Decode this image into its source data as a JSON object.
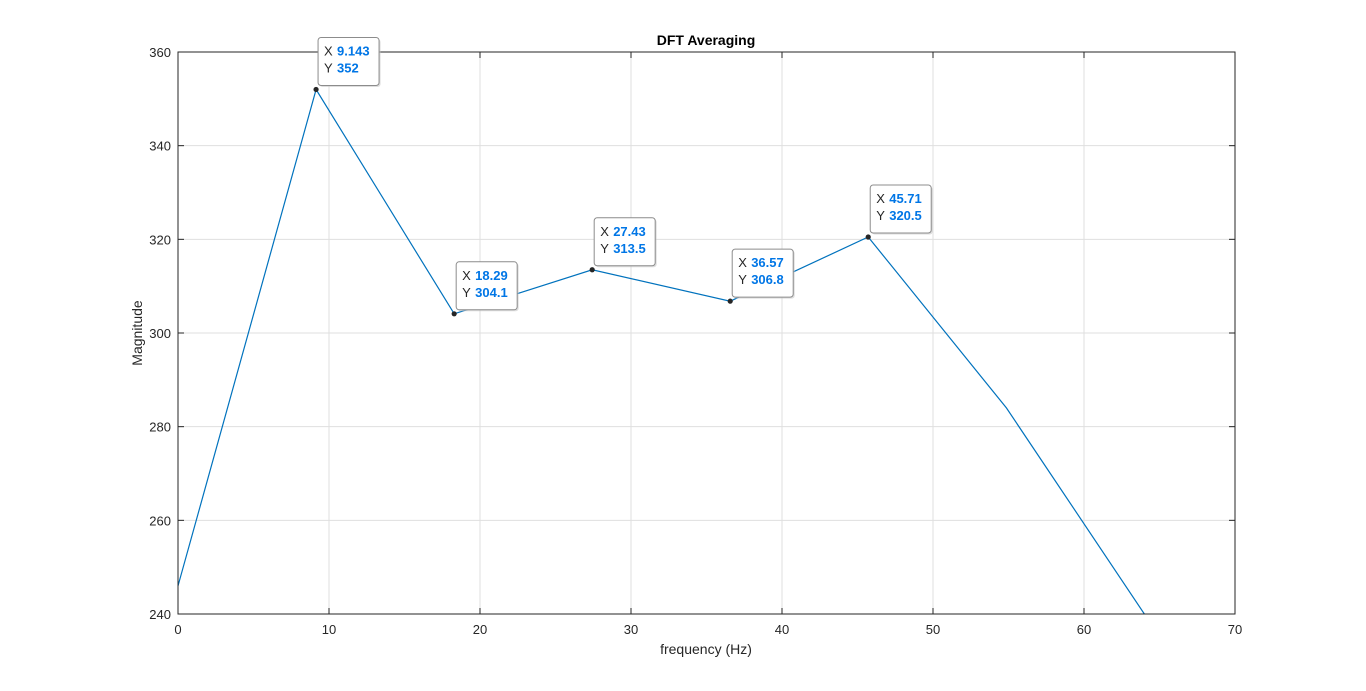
{
  "chart_data": {
    "type": "line",
    "title": "DFT Averaging",
    "xlabel": "frequency (Hz)",
    "ylabel": "Magnitude",
    "xlim": [
      0,
      70
    ],
    "ylim": [
      240,
      360
    ],
    "xticks": [
      0,
      10,
      20,
      30,
      40,
      50,
      60,
      70
    ],
    "yticks": [
      240,
      260,
      280,
      300,
      320,
      340,
      360
    ],
    "grid": true,
    "line_color": "#0072bd",
    "series": [
      {
        "x": [
          0,
          9.143,
          18.29,
          27.43,
          36.57,
          45.71,
          54.86,
          64.0
        ],
        "y": [
          246.0,
          352,
          304.1,
          313.5,
          306.8,
          320.5,
          284.0,
          240.0
        ]
      }
    ],
    "datatips": [
      {
        "x_label": "X",
        "y_label": "Y",
        "x": "9.143",
        "y": "352"
      },
      {
        "x_label": "X",
        "y_label": "Y",
        "x": "18.29",
        "y": "304.1"
      },
      {
        "x_label": "X",
        "y_label": "Y",
        "x": "27.43",
        "y": "313.5"
      },
      {
        "x_label": "X",
        "y_label": "Y",
        "x": "36.57",
        "y": "306.8"
      },
      {
        "x_label": "X",
        "y_label": "Y",
        "x": "45.71",
        "y": "320.5"
      }
    ]
  }
}
